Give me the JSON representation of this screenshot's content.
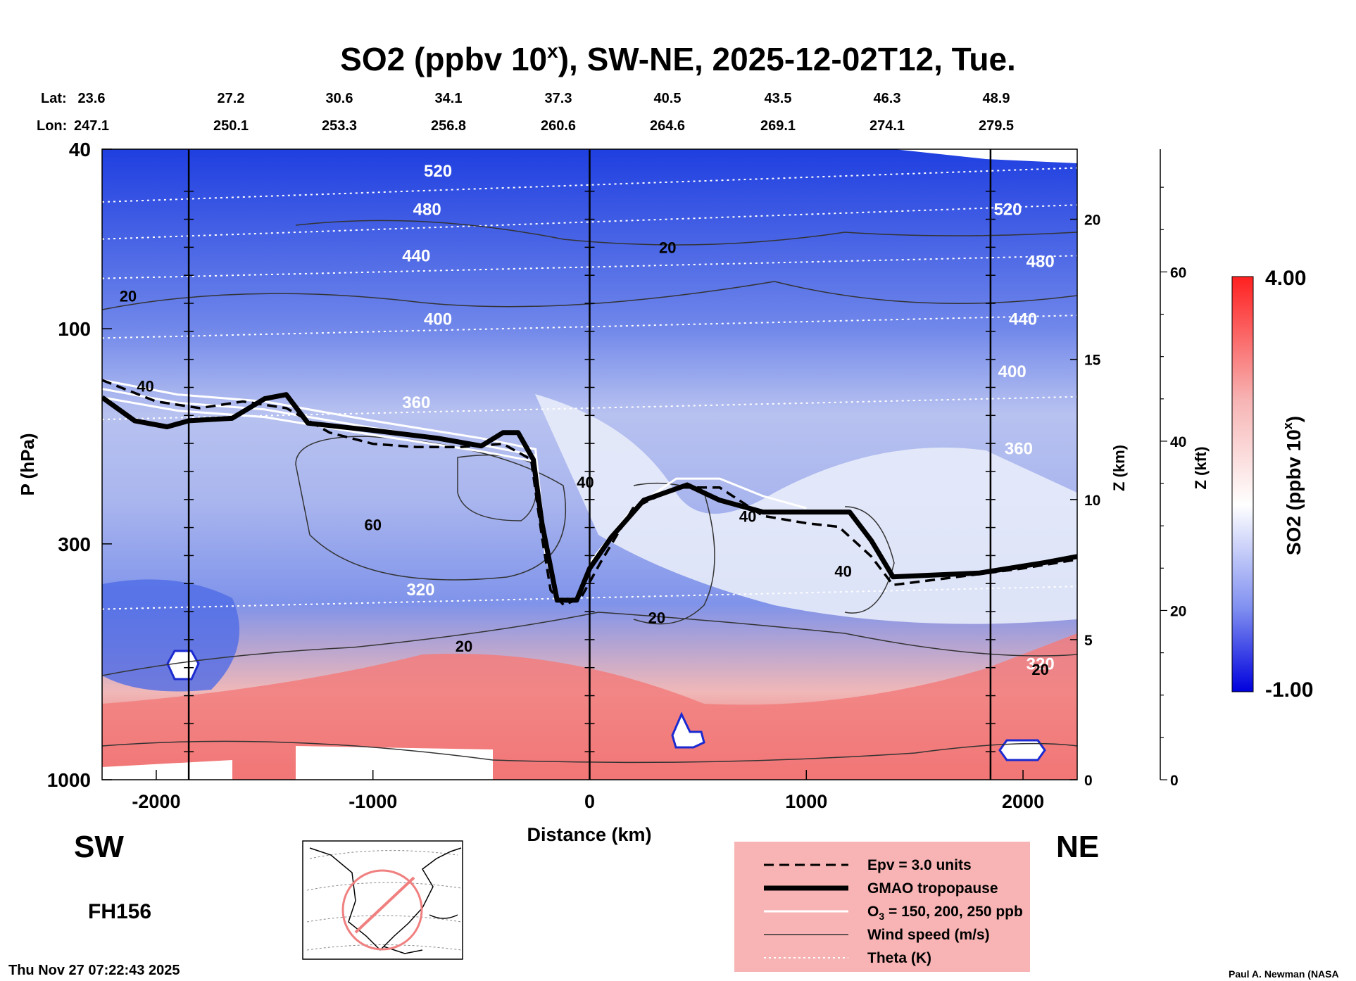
{
  "chart_data": {
    "type": "cross-section",
    "title_main": "SO2 (ppbv 10",
    "title_exp": "x",
    "title_rest": "), SW-NE, 2025-12-02T12, Tue.",
    "lat_label": "Lat:",
    "lon_label": "Lon:",
    "lat": [
      "23.6",
      "27.2",
      "30.6",
      "34.1",
      "37.3",
      "40.5",
      "43.5",
      "46.3",
      "48.9"
    ],
    "lon": [
      "247.1",
      "250.1",
      "253.3",
      "256.8",
      "260.6",
      "264.6",
      "269.1",
      "274.1",
      "279.5"
    ],
    "xlabel": "Distance (km)",
    "xlim": [
      -2250,
      2250
    ],
    "xticks": [
      {
        "v": -2000,
        "label": "-2000"
      },
      {
        "v": -1000,
        "label": "-1000"
      },
      {
        "v": 0,
        "label": "0"
      },
      {
        "v": 1000,
        "label": "1000"
      },
      {
        "v": 2000,
        "label": "2000"
      }
    ],
    "ylabel": "P (hPa)",
    "ylim": [
      1000,
      40
    ],
    "yticks": [
      {
        "v": 40,
        "label": "40"
      },
      {
        "v": 100,
        "label": "100"
      },
      {
        "v": 300,
        "label": "300"
      },
      {
        "v": 1000,
        "label": "1000"
      }
    ],
    "z_km_label": "Z (km)",
    "z_km_ticks": [
      {
        "z": 0,
        "label": "0"
      },
      {
        "z": 5,
        "label": "5"
      },
      {
        "z": 10,
        "label": "10"
      },
      {
        "z": 15,
        "label": "15"
      },
      {
        "z": 20,
        "label": "20"
      }
    ],
    "z_kft_label": "Z (kft)",
    "z_kft_ticks": [
      {
        "z": 0,
        "label": "0"
      },
      {
        "z": 20,
        "label": "20"
      },
      {
        "z": 40,
        "label": "40"
      },
      {
        "z": 60,
        "label": "60"
      }
    ],
    "section_lines_km": [
      -1850,
      0,
      1850
    ],
    "theta_K": [
      {
        "value": 520,
        "p": 48
      },
      {
        "value": 480,
        "p": 58
      },
      {
        "value": 440,
        "p": 73
      },
      {
        "value": 400,
        "p": 99
      },
      {
        "value": 360,
        "p": 150
      },
      {
        "value": 320,
        "p": 395
      }
    ],
    "theta_labels": [
      {
        "text": "520",
        "x": -700,
        "p": 46
      },
      {
        "text": "480",
        "x": -750,
        "p": 56
      },
      {
        "text": "440",
        "x": -800,
        "p": 71
      },
      {
        "text": "400",
        "x": -700,
        "p": 98
      },
      {
        "text": "360",
        "x": -800,
        "p": 150
      },
      {
        "text": "320",
        "x": -780,
        "p": 390
      },
      {
        "text": "520",
        "x": 1930,
        "p": 56
      },
      {
        "text": "480",
        "x": 2080,
        "p": 73
      },
      {
        "text": "440",
        "x": 2000,
        "p": 98
      },
      {
        "text": "400",
        "x": 1950,
        "p": 128
      },
      {
        "text": "360",
        "x": 1980,
        "p": 190
      },
      {
        "text": "320",
        "x": 2080,
        "p": 570
      }
    ],
    "wind_labels": [
      {
        "text": "20",
        "x": -2130,
        "p": 87
      },
      {
        "text": "40",
        "x": -2050,
        "p": 138
      },
      {
        "text": "60",
        "x": -1000,
        "p": 280
      },
      {
        "text": "20",
        "x": -580,
        "p": 520
      },
      {
        "text": "40",
        "x": -20,
        "p": 225
      },
      {
        "text": "20",
        "x": 360,
        "p": 68
      },
      {
        "text": "40",
        "x": 730,
        "p": 268
      },
      {
        "text": "20",
        "x": 310,
        "p": 450
      },
      {
        "text": "40",
        "x": 1170,
        "p": 355
      },
      {
        "text": "20",
        "x": 2080,
        "p": 585
      }
    ],
    "tropopause_gmao": [
      [
        -2250,
        142
      ],
      [
        -2100,
        160
      ],
      [
        -1950,
        165
      ],
      [
        -1850,
        160
      ],
      [
        -1650,
        158
      ],
      [
        -1500,
        143
      ],
      [
        -1400,
        140
      ],
      [
        -1300,
        162
      ],
      [
        -1000,
        168
      ],
      [
        -700,
        175
      ],
      [
        -500,
        182
      ],
      [
        -400,
        170
      ],
      [
        -330,
        170
      ],
      [
        -260,
        195
      ],
      [
        -220,
        270
      ],
      [
        -150,
        400
      ],
      [
        -60,
        400
      ],
      [
        0,
        340
      ],
      [
        100,
        290
      ],
      [
        250,
        240
      ],
      [
        450,
        222
      ],
      [
        600,
        240
      ],
      [
        800,
        255
      ],
      [
        1000,
        255
      ],
      [
        1200,
        255
      ],
      [
        1300,
        295
      ],
      [
        1400,
        355
      ],
      [
        1800,
        348
      ],
      [
        2100,
        330
      ],
      [
        2250,
        320
      ]
    ],
    "epv_3": [
      [
        -2250,
        130
      ],
      [
        -2000,
        145
      ],
      [
        -1800,
        150
      ],
      [
        -1600,
        145
      ],
      [
        -1400,
        150
      ],
      [
        -1200,
        170
      ],
      [
        -1000,
        180
      ],
      [
        -800,
        183
      ],
      [
        -600,
        183
      ],
      [
        -400,
        180
      ],
      [
        -270,
        195
      ],
      [
        -220,
        290
      ],
      [
        -180,
        380
      ],
      [
        -120,
        410
      ],
      [
        -40,
        395
      ],
      [
        50,
        330
      ],
      [
        200,
        250
      ],
      [
        400,
        225
      ],
      [
        600,
        225
      ],
      [
        800,
        260
      ],
      [
        1000,
        270
      ],
      [
        1150,
        275
      ],
      [
        1300,
        320
      ],
      [
        1400,
        370
      ],
      [
        1700,
        355
      ],
      [
        2000,
        340
      ],
      [
        2250,
        325
      ]
    ],
    "ozone_150_200_250": [
      [
        [
          -2250,
          130
        ],
        [
          -1900,
          140
        ],
        [
          -1500,
          145
        ],
        [
          -1000,
          160
        ],
        [
          -500,
          175
        ],
        [
          -250,
          185
        ],
        [
          -200,
          320
        ],
        [
          -150,
          400
        ]
      ],
      [
        [
          -2250,
          136
        ],
        [
          -1900,
          146
        ],
        [
          -1500,
          151
        ],
        [
          -1000,
          166
        ],
        [
          -500,
          181
        ],
        [
          -250,
          191
        ],
        [
          -200,
          330
        ]
      ],
      [
        [
          -2250,
          142
        ],
        [
          -1900,
          152
        ],
        [
          -1500,
          157
        ],
        [
          -1000,
          172
        ],
        [
          -500,
          187
        ],
        [
          -250,
          197
        ]
      ],
      [
        [
          0,
          330
        ],
        [
          200,
          250
        ],
        [
          400,
          215
        ],
        [
          600,
          215
        ],
        [
          800,
          235
        ],
        [
          1000,
          250
        ]
      ]
    ],
    "colorbar": {
      "label_main": "SO2 (ppbv 10",
      "label_exp": "x",
      "label_rest": ")",
      "min": -1.0,
      "max": 4.0,
      "min_label": "-1.00",
      "max_label": "4.00",
      "colors": [
        "#0000dd",
        "#ffffff",
        "#ff2222"
      ]
    },
    "legend": {
      "epv": "Epv = 3.0 units",
      "tropo": "GMAO tropopause",
      "ozone_prefix": "O",
      "ozone_sub": "3",
      "ozone_suffix": " = 150, 200, 250 ppb",
      "wind": "Wind speed (m/s)",
      "theta": "Theta (K)"
    },
    "direction_left": "SW",
    "direction_right": "NE",
    "forecast_hour": "FH156",
    "timestamp": "Thu Nov 27 07:22:43 2025",
    "credit": "Paul A. Newman (NASA"
  }
}
